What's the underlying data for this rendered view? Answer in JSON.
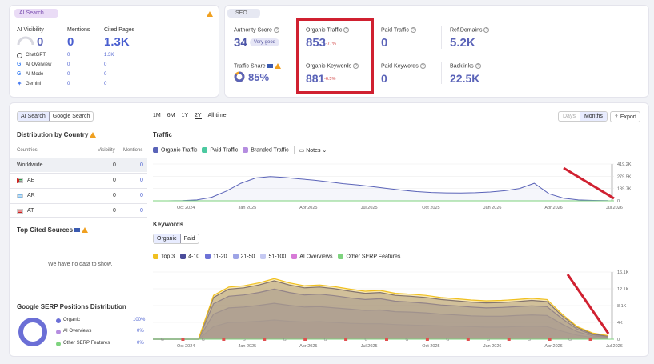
{
  "ai_search": {
    "tab": "AI Search",
    "headers": {
      "visibility": "AI Visibility",
      "mentions": "Mentions",
      "cited": "Cited Pages"
    },
    "totals": {
      "visibility": "0",
      "mentions": "0",
      "cited": "1.3K"
    },
    "rows": [
      {
        "name": "ChatGPT",
        "icon": "chatgpt-icon",
        "mentions": "0",
        "cited": "1.3K"
      },
      {
        "name": "AI Overview",
        "icon": "google-icon",
        "mentions": "0",
        "cited": "0"
      },
      {
        "name": "AI Mode",
        "icon": "google-icon",
        "mentions": "0",
        "cited": "0"
      },
      {
        "name": "Gemini",
        "icon": "gemini-icon",
        "mentions": "0",
        "cited": "0"
      }
    ]
  },
  "seo": {
    "tab": "SEO",
    "authority": {
      "label": "Authority Score",
      "value": "34",
      "badge": "Very good"
    },
    "organic_traffic": {
      "label": "Organic Traffic",
      "value": "853",
      "delta": "-77%"
    },
    "paid_traffic": {
      "label": "Paid Traffic",
      "value": "0"
    },
    "ref_domains": {
      "label": "Ref.Domains",
      "value": "5.2K"
    },
    "traffic_share": {
      "label": "Traffic Share",
      "value": "85%",
      "percent": 85
    },
    "organic_keywords": {
      "label": "Organic Keywords",
      "value": "881",
      "delta": "-6.5%"
    },
    "paid_keywords": {
      "label": "Paid Keywords",
      "value": "0"
    },
    "backlinks": {
      "label": "Backlinks",
      "value": "22.5K"
    }
  },
  "toggle": {
    "ai_search": "AI Search",
    "google_search": "Google Search"
  },
  "country": {
    "title": "Distribution by Country",
    "headers": {
      "country": "Countries",
      "visibility": "Visibility",
      "mentions": "Mentions"
    },
    "rows": [
      {
        "name": "Worldwide",
        "visibility": "0",
        "mentions": "0"
      },
      {
        "name": "AE",
        "visibility": "0",
        "mentions": "0"
      },
      {
        "name": "AR",
        "visibility": "0",
        "mentions": "0"
      },
      {
        "name": "AT",
        "visibility": "0",
        "mentions": "0"
      }
    ]
  },
  "cited_sources": {
    "title": "Top Cited Sources",
    "empty": "We have no data to show."
  },
  "serp": {
    "title": "Google SERP Positions Distribution",
    "rows": [
      {
        "label": "Organic",
        "value": "100%",
        "color": "#6b6fd6"
      },
      {
        "label": "AI Overviews",
        "value": "0%",
        "color": "#b58de0"
      },
      {
        "label": "Other SERP Features",
        "value": "0%",
        "color": "#7ed37e"
      }
    ]
  },
  "ranges": [
    "1M",
    "6M",
    "1Y",
    "2Y",
    "All time"
  ],
  "period": {
    "days": "Days",
    "months": "Months",
    "export": "Export"
  },
  "traffic": {
    "title": "Traffic",
    "legend": [
      {
        "label": "Organic Traffic",
        "color": "#5a63b8"
      },
      {
        "label": "Paid Traffic",
        "color": "#4cc9a0"
      },
      {
        "label": "Branded Traffic",
        "color": "#b58de0"
      }
    ],
    "notes": "Notes"
  },
  "keywords": {
    "title": "Keywords",
    "tabs": [
      "Organic",
      "Paid"
    ],
    "legend": [
      {
        "label": "Top 3",
        "color": "#f0c020"
      },
      {
        "label": "4-10",
        "color": "#4a4c9a"
      },
      {
        "label": "11-20",
        "color": "#6d72d6"
      },
      {
        "label": "21-50",
        "color": "#9ea4e6"
      },
      {
        "label": "51-100",
        "color": "#c5c9f2"
      },
      {
        "label": "AI Overviews",
        "color": "#d77ad7"
      },
      {
        "label": "Other SERP Features",
        "color": "#7ed37e"
      }
    ]
  },
  "chart_data": [
    {
      "type": "area",
      "title": "Traffic",
      "x_labels": [
        "Oct 2024",
        "Jan 2025",
        "Apr 2025",
        "Jul 2025",
        "Oct 2025",
        "Jan 2026",
        "Apr 2026",
        "Jul 2026"
      ],
      "y_ticks": [
        "419.2K",
        "279.5K",
        "139.7K",
        "0"
      ],
      "ylim": [
        0,
        419200
      ],
      "series": [
        {
          "name": "Organic Traffic",
          "values": [
            0,
            0,
            2000,
            10000,
            40000,
            110000,
            200000,
            260000,
            275000,
            265000,
            250000,
            235000,
            215000,
            195000,
            180000,
            160000,
            140000,
            120000,
            105000,
            95000,
            90000,
            88000,
            92000,
            100000,
            115000,
            140000,
            200000,
            80000,
            30000,
            10000,
            5000,
            3000
          ]
        }
      ]
    },
    {
      "type": "area",
      "title": "Keywords",
      "x_labels": [
        "Oct 2024",
        "Jan 2025",
        "Apr 2025",
        "Jul 2025",
        "Oct 2025",
        "Jan 2026",
        "Apr 2026",
        "Jul 2026"
      ],
      "y_ticks": [
        "16.1K",
        "12.1K",
        "8.1K",
        "4K",
        "0"
      ],
      "ylim": [
        0,
        16100
      ],
      "series": [
        {
          "name": "Top 3",
          "values": [
            0,
            0,
            0,
            0,
            10500,
            12500,
            12800,
            13500,
            14500,
            13500,
            12800,
            13000,
            12600,
            12000,
            11500,
            11700,
            11000,
            10800,
            10500,
            10000,
            9700,
            9400,
            9200,
            9300,
            9500,
            9800,
            9500,
            6000,
            3000,
            1500,
            900
          ]
        },
        {
          "name": "4-10",
          "values": [
            0,
            0,
            0,
            0,
            10000,
            12000,
            12300,
            13000,
            14000,
            13000,
            12300,
            12500,
            12100,
            11500,
            11000,
            11200,
            10500,
            10300,
            10000,
            9500,
            9200,
            8900,
            8700,
            8800,
            9000,
            9300,
            9000,
            5600,
            2800,
            1300,
            800
          ]
        },
        {
          "name": "11-20",
          "values": [
            0,
            0,
            0,
            0,
            8500,
            10300,
            10600,
            11200,
            12000,
            11200,
            10600,
            10800,
            10400,
            9900,
            9500,
            9700,
            9100,
            8900,
            8600,
            8200,
            8000,
            7700,
            7500,
            7600,
            7800,
            8000,
            7800,
            4900,
            2400,
            1100,
            700
          ]
        },
        {
          "name": "21-50",
          "values": [
            0,
            0,
            0,
            0,
            6000,
            7500,
            7700,
            8100,
            8600,
            8100,
            7700,
            7800,
            7500,
            7200,
            6900,
            7000,
            6600,
            6500,
            6300,
            6000,
            5800,
            5600,
            5500,
            5500,
            5700,
            5800,
            5700,
            3600,
            1800,
            800,
            500
          ]
        },
        {
          "name": "51-100",
          "values": [
            0,
            0,
            0,
            0,
            3000,
            4000,
            4100,
            4300,
            4600,
            4300,
            4100,
            4200,
            4000,
            3800,
            3700,
            3700,
            3500,
            3400,
            3300,
            3200,
            3100,
            3000,
            2900,
            2900,
            3000,
            3100,
            3000,
            1900,
            950,
            450,
            280
          ]
        }
      ]
    }
  ]
}
